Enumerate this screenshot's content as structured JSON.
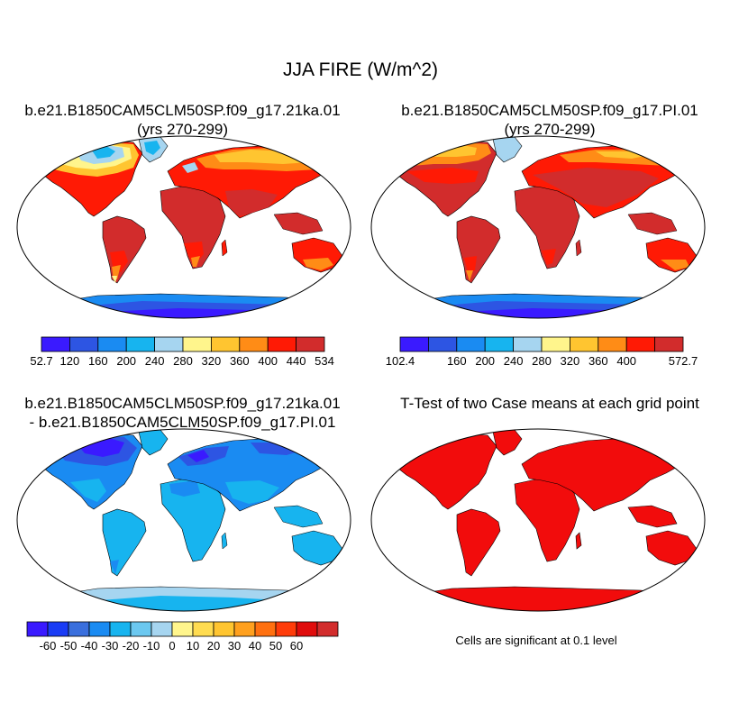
{
  "title": "JJA FIRE (W/m^2)",
  "panels": [
    {
      "title_line1": "b.e21.B1850CAM5CLM50SP.f09_g17.21ka.01",
      "title_line2": "(yrs 270-299)"
    },
    {
      "title_line1": "b.e21.B1850CAM5CLM50SP.f09_g17.PI.01",
      "title_line2": "(yrs 270-299)"
    },
    {
      "title_line1": "b.e21.B1850CAM5CLM50SP.f09_g17.21ka.01",
      "title_line2": "- b.e21.B1850CAM5CLM50SP.f09_g17.PI.01"
    },
    {
      "title_line1": "T-Test of two Case means at each grid point",
      "title_line2": ""
    }
  ],
  "colorbars": [
    {
      "colors": [
        "#3a1aff",
        "#2d55e3",
        "#1a8bf2",
        "#17b4ef",
        "#a6d5f0",
        "#fff58c",
        "#ffc530",
        "#ff8c16",
        "#ff1a05",
        "#d22c2c"
      ],
      "labels": [
        "52.7",
        "120",
        "160",
        "200",
        "240",
        "280",
        "320",
        "360",
        "400",
        "440",
        "534"
      ],
      "label_slots": [
        0,
        1,
        2,
        3,
        4,
        5,
        6,
        7,
        8,
        9,
        10
      ]
    },
    {
      "colors": [
        "#3a1aff",
        "#2d55e3",
        "#1a8bf2",
        "#17b4ef",
        "#a6d5f0",
        "#fff58c",
        "#ffc530",
        "#ff8c16",
        "#ff1a05",
        "#d22c2c"
      ],
      "labels": [
        "102.4",
        "160",
        "200",
        "240",
        "280",
        "320",
        "360",
        "400",
        "572.7"
      ],
      "label_slots": [
        0,
        2,
        3,
        4,
        5,
        6,
        7,
        8,
        10
      ]
    },
    {
      "colors": [
        "#3a1aff",
        "#1a3cf5",
        "#3a6fdd",
        "#1a8bf2",
        "#17b4ef",
        "#6bc8f0",
        "#a6d5f0",
        "#fff58c",
        "#ffdc50",
        "#ffc530",
        "#ffa01e",
        "#ff7010",
        "#ff3c0a",
        "#e00c0c",
        "#d22c2c"
      ],
      "labels": [
        "-60",
        "-50",
        "-40",
        "-30",
        "-20",
        "-10",
        "0",
        "10",
        "20",
        "30",
        "40",
        "50",
        "60"
      ],
      "label_slots": [
        1,
        2,
        3,
        4,
        5,
        6,
        7,
        8,
        9,
        10,
        11,
        12,
        13
      ]
    }
  ],
  "significance_note": "Cells are significant at 0.1 level",
  "map_colors": {
    "ocean": "#ffffff",
    "coast": "#000000",
    "land_hot": "#d22c2c",
    "land_warm": "#ff1a05",
    "land_orange": "#ff8c16",
    "land_amber": "#ffc530",
    "land_yellow": "#fff58c",
    "land_pale_blue": "#a6d5f0",
    "land_cyan": "#17b4ef",
    "land_blue": "#1a8bf2",
    "land_dark_blue": "#2d55e3",
    "land_violet": "#3a1aff",
    "sig_red": "#f20c0c"
  }
}
